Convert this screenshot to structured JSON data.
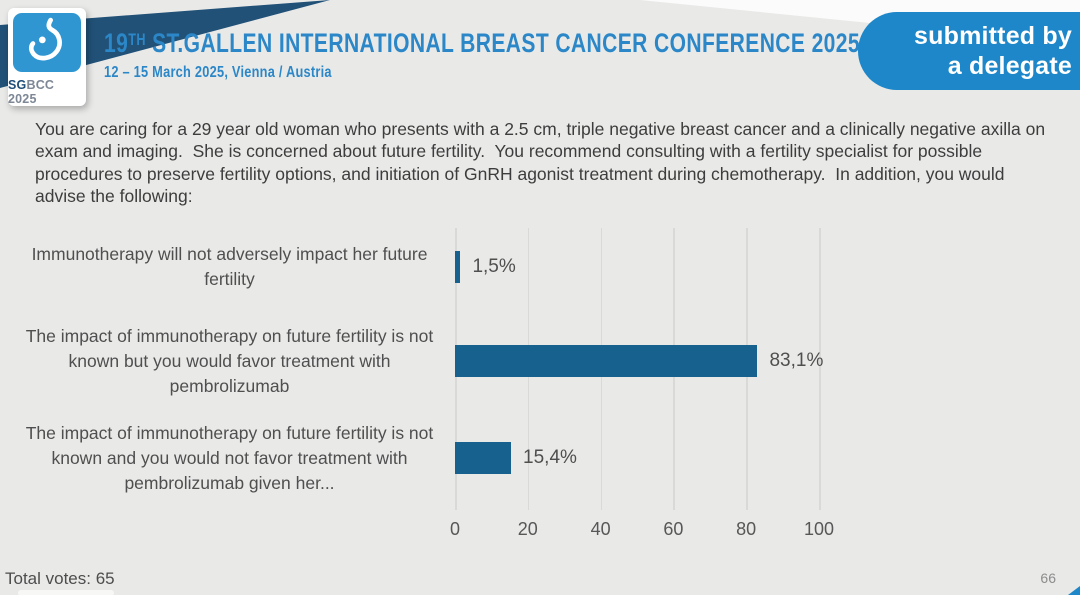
{
  "header": {
    "logo": {
      "sg": "SG",
      "bcc": "BCC 2025"
    },
    "title_num": "19",
    "title_sup": "TH",
    "title_rest": " ST.GALLEN INTERNATIONAL BREAST CANCER CONFERENCE 2025",
    "subtitle": "12 – 15 March 2025, Vienna / Austria",
    "badge_line1": "submitted by",
    "badge_line2": "a delegate"
  },
  "question": "You are caring for a 29 year old woman who presents with a 2.5 cm, triple negative breast cancer and a clinically negative axilla on exam and imaging.  She is concerned about future fertility.  You recommend consulting with a fertility specialist for possible procedures to preserve fertility options, and initiation of GnRH agonist treatment during chemotherapy.  In addition, you would advise the following:",
  "chart_data": {
    "type": "bar",
    "orientation": "horizontal",
    "categories": [
      "Immunotherapy will not adversely impact her future fertility",
      "The impact of immunotherapy on future fertility is not known but you would favor treatment with pembrolizumab",
      "The impact of immunotherapy on future fertility is not known and you would not favor treatment with pembrolizumab given her..."
    ],
    "values": [
      1.5,
      83.1,
      15.4
    ],
    "value_labels": [
      "1,5%",
      "83,1%",
      "15,4%"
    ],
    "xticks": [
      0,
      20,
      40,
      60,
      80,
      100
    ],
    "xlim": [
      0,
      100
    ],
    "grid": true,
    "legend": false,
    "bar_color": "#17618f"
  },
  "footer": {
    "total_votes": "Total votes: 65",
    "page_number": "66"
  },
  "colors": {
    "background": "#e9e9e8",
    "navy_accent": "#215177",
    "title_blue": "#2b87c7",
    "badge_blue": "#1d87c9",
    "logo_blue": "#2f96d2",
    "bar_blue": "#17618f"
  }
}
